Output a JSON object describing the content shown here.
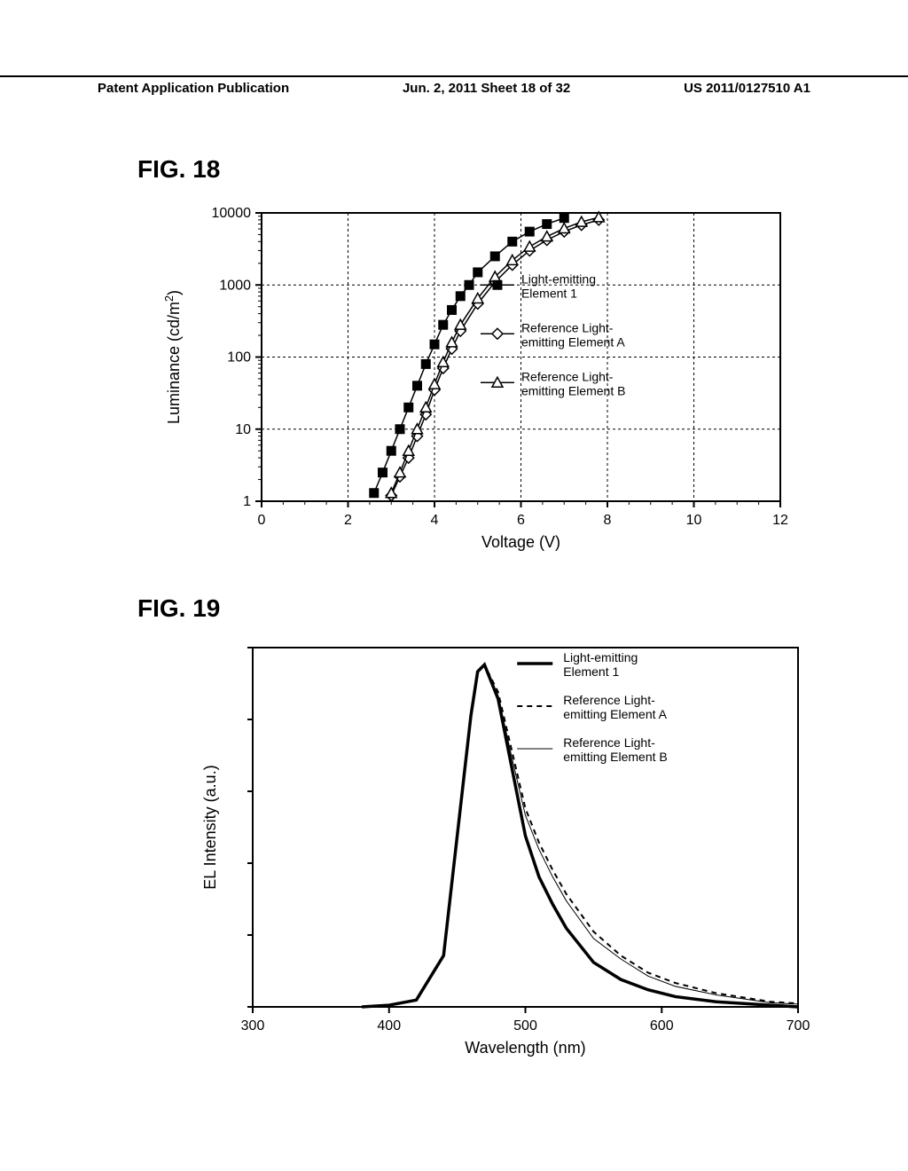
{
  "header": {
    "left": "Patent Application Publication",
    "center": "Jun. 2, 2011  Sheet 18 of 32",
    "right": "US 2011/0127510 A1"
  },
  "fig18": {
    "label": "FIG. 18",
    "type": "scatter-line",
    "xlabel": "Voltage (V)",
    "ylabel": "Luminance (cd/m²)",
    "xlim": [
      0,
      12
    ],
    "xtick_step": 2,
    "xticks": [
      0,
      2,
      4,
      6,
      8,
      10,
      12
    ],
    "ylim": [
      1,
      10000
    ],
    "yscale": "log",
    "yticks": [
      1,
      10,
      100,
      1000,
      10000
    ],
    "ytick_labels": [
      "1",
      "10",
      "100",
      "1000",
      "10000"
    ],
    "background_color": "#ffffff",
    "axis_color": "#000000",
    "grid_color": "#000000",
    "grid_style": "dashed",
    "label_fontsize": 18,
    "tick_fontsize": 16,
    "legend_fontsize": 14,
    "series": [
      {
        "name": "Light-emitting Element 1",
        "marker": "filled-square",
        "color": "#000000",
        "line_width": 1.5,
        "x": [
          2.6,
          2.8,
          3.0,
          3.2,
          3.4,
          3.6,
          3.8,
          4.0,
          4.2,
          4.4,
          4.6,
          4.8,
          5.0,
          5.4,
          5.8,
          6.2,
          6.6,
          7.0
        ],
        "y": [
          1.3,
          2.5,
          5,
          10,
          20,
          40,
          80,
          150,
          280,
          450,
          700,
          1000,
          1500,
          2500,
          4000,
          5500,
          7000,
          8500
        ]
      },
      {
        "name": "Reference Light-emitting Element A",
        "marker": "open-diamond",
        "color": "#000000",
        "line_width": 1.5,
        "x": [
          3.0,
          3.2,
          3.4,
          3.6,
          3.8,
          4.0,
          4.2,
          4.4,
          4.6,
          5.0,
          5.4,
          5.8,
          6.2,
          6.6,
          7.0,
          7.4,
          7.8
        ],
        "y": [
          1.2,
          2.2,
          4,
          8,
          16,
          35,
          70,
          130,
          230,
          550,
          1100,
          1900,
          3000,
          4200,
          5500,
          6800,
          8000
        ]
      },
      {
        "name": "Reference Light-emitting Element B",
        "marker": "open-triangle",
        "color": "#000000",
        "line_width": 1.5,
        "x": [
          3.0,
          3.2,
          3.4,
          3.6,
          3.8,
          4.0,
          4.2,
          4.4,
          4.6,
          5.0,
          5.4,
          5.8,
          6.2,
          6.6,
          7.0,
          7.4,
          7.8
        ],
        "y": [
          1.3,
          2.5,
          5,
          10,
          20,
          42,
          85,
          160,
          280,
          650,
          1300,
          2200,
          3400,
          4700,
          6100,
          7500,
          8700
        ]
      }
    ]
  },
  "fig19": {
    "label": "FIG. 19",
    "type": "line",
    "xlabel": "Wavelength (nm)",
    "ylabel": "EL Intensity (a.u.)",
    "xlim": [
      300,
      700
    ],
    "xtick_step": 100,
    "xticks": [
      300,
      400,
      500,
      600,
      700
    ],
    "ylim": [
      0,
      1.05
    ],
    "background_color": "#ffffff",
    "axis_color": "#000000",
    "label_fontsize": 18,
    "tick_fontsize": 16,
    "legend_fontsize": 14,
    "series": [
      {
        "name": "Light-emitting Element 1",
        "color": "#000000",
        "line_width": 3.5,
        "dash": "solid",
        "x": [
          380,
          400,
          420,
          440,
          450,
          460,
          465,
          470,
          480,
          490,
          500,
          510,
          520,
          530,
          550,
          570,
          590,
          610,
          640,
          680,
          700
        ],
        "y": [
          0,
          0.005,
          0.02,
          0.15,
          0.5,
          0.85,
          0.98,
          1.0,
          0.9,
          0.7,
          0.5,
          0.38,
          0.3,
          0.23,
          0.13,
          0.08,
          0.05,
          0.03,
          0.015,
          0.005,
          0
        ]
      },
      {
        "name": "Reference Light-emitting Element A",
        "color": "#000000",
        "line_width": 2,
        "dash": "dashed",
        "x": [
          380,
          400,
          420,
          440,
          450,
          460,
          465,
          470,
          480,
          490,
          500,
          510,
          520,
          530,
          550,
          570,
          590,
          610,
          640,
          680,
          700
        ],
        "y": [
          0,
          0.005,
          0.02,
          0.15,
          0.5,
          0.85,
          0.98,
          1.0,
          0.92,
          0.75,
          0.58,
          0.48,
          0.4,
          0.33,
          0.22,
          0.15,
          0.1,
          0.07,
          0.04,
          0.015,
          0.01
        ]
      },
      {
        "name": "Reference Light-emitting Element B",
        "color": "#000000",
        "line_width": 1,
        "dash": "solid",
        "x": [
          380,
          400,
          420,
          440,
          450,
          460,
          465,
          470,
          480,
          490,
          500,
          510,
          520,
          530,
          550,
          570,
          590,
          610,
          640,
          680,
          700
        ],
        "y": [
          0,
          0.005,
          0.02,
          0.15,
          0.5,
          0.85,
          0.98,
          1.0,
          0.91,
          0.73,
          0.56,
          0.46,
          0.38,
          0.31,
          0.2,
          0.14,
          0.09,
          0.06,
          0.035,
          0.012,
          0.008
        ]
      }
    ]
  }
}
